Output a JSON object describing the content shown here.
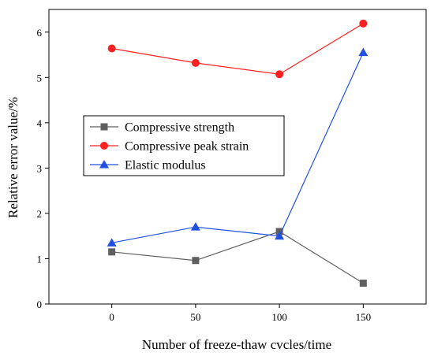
{
  "chart_data": {
    "type": "line",
    "xlabel": "Number of freeze-thaw cvcles/time",
    "ylabel": "Relative error value/%",
    "x": [
      0,
      50,
      100,
      150
    ],
    "xlim": [
      -37.5,
      187.5
    ],
    "xticks": [
      0,
      50,
      100,
      150
    ],
    "ylim": [
      0,
      6.5
    ],
    "yticks": [
      0,
      1,
      2,
      3,
      4,
      5,
      6
    ],
    "grid": false,
    "legend_position": "middle-left",
    "series": [
      {
        "name": "Compressive strength",
        "values": [
          1.15,
          0.96,
          1.6,
          0.46
        ],
        "color": "#5f5f5f",
        "marker": "square"
      },
      {
        "name": "Compressive peak strain",
        "values": [
          5.64,
          5.32,
          5.07,
          6.19
        ],
        "color": "#ff2020",
        "marker": "circle"
      },
      {
        "name": "Elastic modulus",
        "values": [
          1.35,
          1.7,
          1.5,
          5.55
        ],
        "color": "#2050e0",
        "marker": "triangle"
      }
    ]
  }
}
